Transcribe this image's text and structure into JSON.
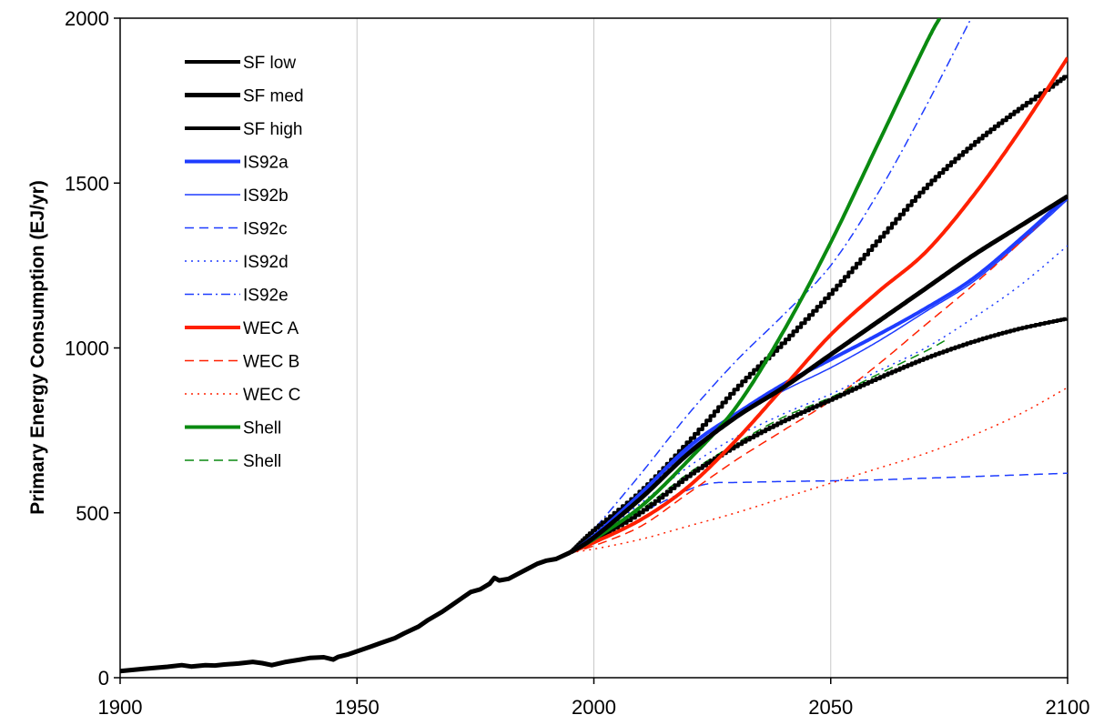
{
  "chart_data": {
    "type": "line",
    "title": "",
    "xlabel": "",
    "ylabel": "Primary Energy Consumption (EJ/yr)",
    "xlim": [
      1900,
      2100
    ],
    "ylim": [
      0,
      2000
    ],
    "xticks": [
      1900,
      1950,
      2000,
      2050,
      2100
    ],
    "yticks": [
      0,
      500,
      1000,
      1500,
      2000
    ],
    "xtick_labels": [
      "1900",
      "1950",
      "2000",
      "2050",
      "2100"
    ],
    "ytick_labels": [
      "0",
      "500",
      "1000",
      "1500",
      "2000"
    ],
    "grid": "vertical",
    "legend_position": "top-left inside plot",
    "series": [
      {
        "name": "SF low",
        "color": "#000000",
        "width": 4,
        "dash": "solid",
        "jagged": true,
        "x": [
          1995,
          2000,
          2010,
          2020,
          2030,
          2040,
          2050,
          2060,
          2070,
          2080,
          2090,
          2100
        ],
        "y": [
          380,
          420,
          505,
          615,
          705,
          780,
          845,
          910,
          970,
          1020,
          1060,
          1090
        ]
      },
      {
        "name": "SF med",
        "color": "#000000",
        "width": 5,
        "dash": "solid",
        "jagged": false,
        "x": [
          1995,
          2000,
          2010,
          2020,
          2030,
          2040,
          2050,
          2060,
          2070,
          2080,
          2090,
          2100
        ],
        "y": [
          380,
          425,
          545,
          680,
          790,
          880,
          980,
          1080,
          1180,
          1280,
          1370,
          1460
        ]
      },
      {
        "name": "SF high",
        "color": "#000000",
        "width": 4,
        "dash": "solid",
        "jagged": true,
        "x": [
          1995,
          2000,
          2010,
          2020,
          2030,
          2040,
          2050,
          2060,
          2070,
          2080,
          2090,
          2100
        ],
        "y": [
          380,
          450,
          570,
          720,
          880,
          1020,
          1170,
          1330,
          1490,
          1620,
          1730,
          1830
        ]
      },
      {
        "name": "IS92a",
        "color": "#1e3cff",
        "width": 4,
        "dash": "solid",
        "jagged": false,
        "x": [
          1995,
          2000,
          2010,
          2020,
          2030,
          2040,
          2050,
          2060,
          2070,
          2080,
          2090,
          2100
        ],
        "y": [
          380,
          430,
          560,
          700,
          800,
          890,
          965,
          1040,
          1120,
          1210,
          1330,
          1460
        ]
      },
      {
        "name": "IS92b",
        "color": "#1e3cff",
        "width": 1.5,
        "dash": "solid",
        "jagged": false,
        "x": [
          1995,
          2000,
          2010,
          2020,
          2030,
          2040,
          2050,
          2060,
          2070,
          2080,
          2090,
          2100
        ],
        "y": [
          380,
          430,
          560,
          690,
          790,
          870,
          940,
          1020,
          1110,
          1200,
          1320,
          1450
        ]
      },
      {
        "name": "IS92c",
        "color": "#1e3cff",
        "width": 1.5,
        "dash": "10,6",
        "jagged": false,
        "x": [
          1995,
          2000,
          2010,
          2020,
          2025,
          2030,
          2040,
          2050,
          2060,
          2070,
          2080,
          2090,
          2100
        ],
        "y": [
          380,
          420,
          500,
          570,
          590,
          592,
          595,
          597,
          600,
          605,
          610,
          615,
          620
        ]
      },
      {
        "name": "IS92d",
        "color": "#1e3cff",
        "width": 1.5,
        "dash": "2,5",
        "jagged": false,
        "x": [
          1995,
          2000,
          2010,
          2020,
          2030,
          2040,
          2050,
          2060,
          2070,
          2080,
          2090,
          2100
        ],
        "y": [
          380,
          420,
          530,
          640,
          730,
          800,
          860,
          930,
          1000,
          1090,
          1190,
          1310
        ]
      },
      {
        "name": "IS92e",
        "color": "#1e3cff",
        "width": 1.5,
        "dash": "10,4,2,4",
        "jagged": false,
        "x": [
          1995,
          2000,
          2010,
          2020,
          2030,
          2040,
          2050,
          2060,
          2070,
          2080
        ],
        "y": [
          380,
          450,
          620,
          800,
          960,
          1100,
          1250,
          1470,
          1730,
          2010
        ]
      },
      {
        "name": "WEC A",
        "color": "#ff2000",
        "width": 4,
        "dash": "solid",
        "jagged": false,
        "x": [
          1995,
          2000,
          2010,
          2020,
          2030,
          2040,
          2050,
          2060,
          2070,
          2080,
          2090,
          2100
        ],
        "y": [
          380,
          410,
          480,
          580,
          720,
          880,
          1040,
          1170,
          1290,
          1460,
          1660,
          1880
        ]
      },
      {
        "name": "WEC B",
        "color": "#ff2000",
        "width": 1.5,
        "dash": "10,6",
        "jagged": false,
        "x": [
          1995,
          2000,
          2010,
          2020,
          2030,
          2040,
          2050,
          2060,
          2070,
          2080,
          2090,
          2100
        ],
        "y": [
          380,
          400,
          460,
          560,
          660,
          750,
          840,
          950,
          1070,
          1190,
          1320,
          1460
        ]
      },
      {
        "name": "WEC C",
        "color": "#ff2000",
        "width": 1.5,
        "dash": "2,5",
        "jagged": false,
        "x": [
          1995,
          2000,
          2010,
          2020,
          2030,
          2040,
          2050,
          2060,
          2070,
          2080,
          2090,
          2100
        ],
        "y": [
          380,
          390,
          420,
          460,
          500,
          545,
          590,
          635,
          680,
          735,
          800,
          880
        ]
      },
      {
        "name": "Shell",
        "color": "#0a8a10",
        "width": 4,
        "dash": "solid",
        "jagged": false,
        "x": [
          1995,
          2000,
          2010,
          2020,
          2030,
          2040,
          2050,
          2060,
          2070,
          2073
        ],
        "y": [
          380,
          420,
          520,
          660,
          820,
          1050,
          1320,
          1620,
          1920,
          2000
        ]
      },
      {
        "name": "Shell",
        "color": "#0a8a10",
        "width": 1.5,
        "dash": "10,6",
        "jagged": false,
        "x": [
          1995,
          2000,
          2010,
          2020,
          2030,
          2040,
          2050,
          2060,
          2070,
          2075
        ],
        "y": [
          380,
          420,
          510,
          620,
          710,
          790,
          850,
          920,
          990,
          1030
        ]
      }
    ],
    "history": {
      "color": "#000000",
      "width": 5,
      "x": [
        1900,
        1905,
        1910,
        1913,
        1915,
        1918,
        1920,
        1922,
        1925,
        1928,
        1930,
        1932,
        1935,
        1938,
        1940,
        1943,
        1945,
        1946,
        1948,
        1950,
        1953,
        1955,
        1958,
        1960,
        1963,
        1965,
        1968,
        1970,
        1972,
        1974,
        1976,
        1978,
        1979,
        1980,
        1982,
        1984,
        1986,
        1988,
        1990,
        1992,
        1995
      ],
      "y": [
        20,
        27,
        33,
        38,
        34,
        38,
        37,
        40,
        43,
        48,
        44,
        38,
        48,
        55,
        60,
        62,
        55,
        63,
        70,
        80,
        95,
        105,
        120,
        135,
        155,
        175,
        200,
        220,
        240,
        260,
        268,
        285,
        303,
        295,
        300,
        315,
        330,
        345,
        355,
        360,
        380
      ]
    }
  }
}
